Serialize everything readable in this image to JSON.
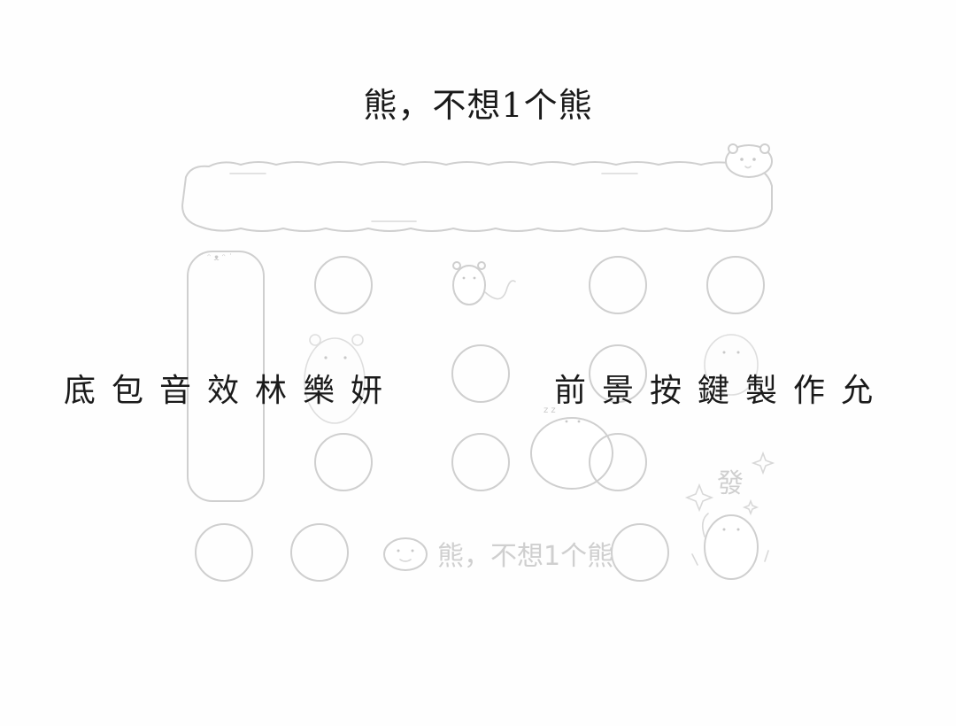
{
  "title": "熊，不想1个熊",
  "credits": {
    "left": "底包音效林樂妍",
    "right": "前景按鍵製作允"
  },
  "doodles": {
    "banner_text": "熊，不想1个熊",
    "sign_text": "發",
    "snore_text": "z z",
    "icon_names": [
      "bear-icon",
      "sparkle-icon",
      "cloud-banner"
    ]
  },
  "pads": {
    "count": 13,
    "labels": []
  },
  "colors": {
    "background": "#fefefe",
    "text": "#1a1a1a",
    "sketch": "#cfcfcf"
  }
}
